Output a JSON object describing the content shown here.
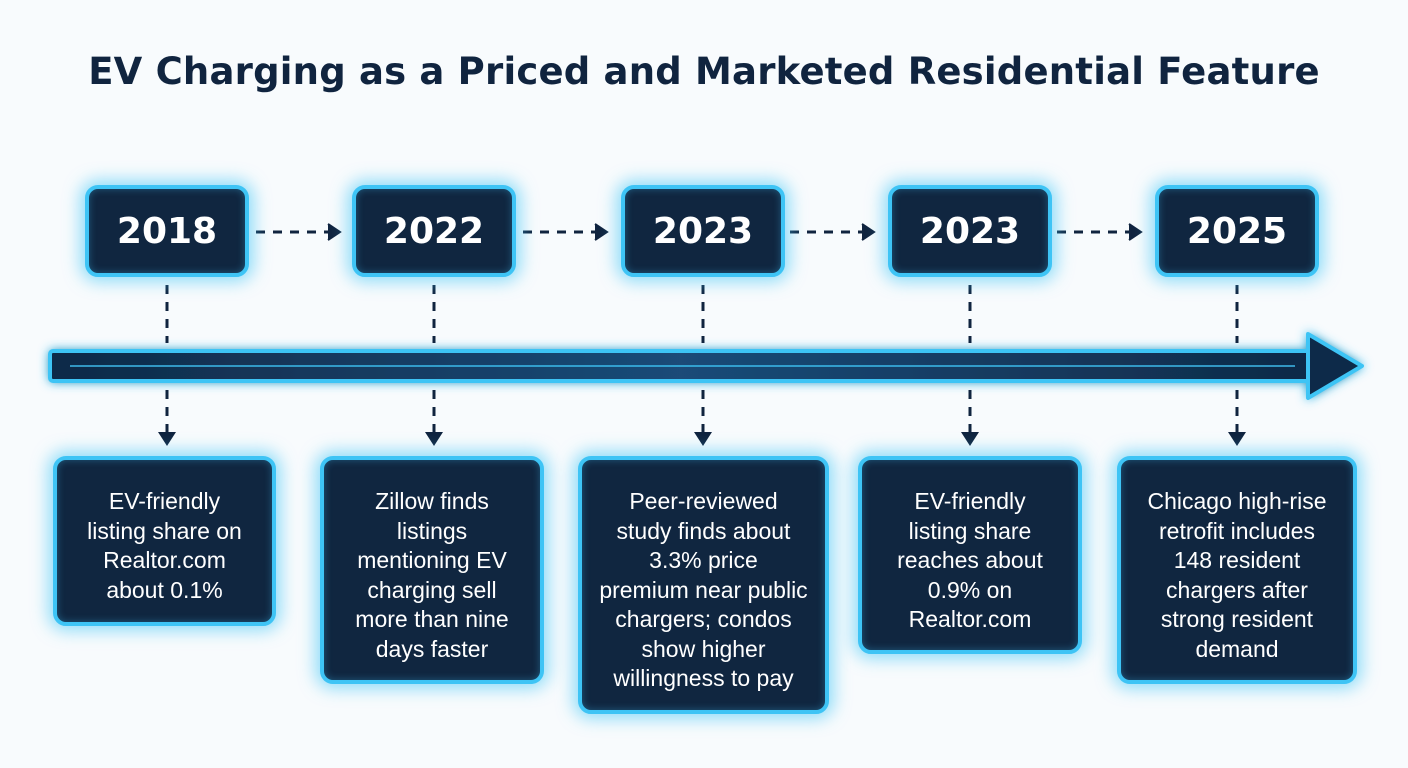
{
  "title": "EV Charging as a Priced and Marketed Residential Feature",
  "colors": {
    "background": "#f8fbfd",
    "box_fill": "#102640",
    "glow_border": "#3ec4f5",
    "title_text": "#10243f",
    "box_text": "#ffffff"
  },
  "milestones": [
    {
      "year": "2018",
      "lines": [
        "EV-friendly",
        "listing share on",
        "Realtor.com",
        "about 0.1%"
      ]
    },
    {
      "year": "2022",
      "lines": [
        "Zillow finds",
        "listings",
        "mentioning EV",
        "charging sell",
        "more than nine",
        "days faster"
      ]
    },
    {
      "year": "2023",
      "lines": [
        "Peer-reviewed",
        "study finds about",
        "3.3% price",
        "premium near public",
        "chargers; condos",
        "show higher",
        "willingness to pay"
      ]
    },
    {
      "year": "2023",
      "lines": [
        "EV-friendly",
        "listing share",
        "reaches about",
        "0.9% on",
        "Realtor.com"
      ]
    },
    {
      "year": "2025",
      "lines": [
        "Chicago high-rise",
        "retrofit includes",
        "148 resident",
        "chargers after",
        "strong resident",
        "demand"
      ]
    }
  ]
}
